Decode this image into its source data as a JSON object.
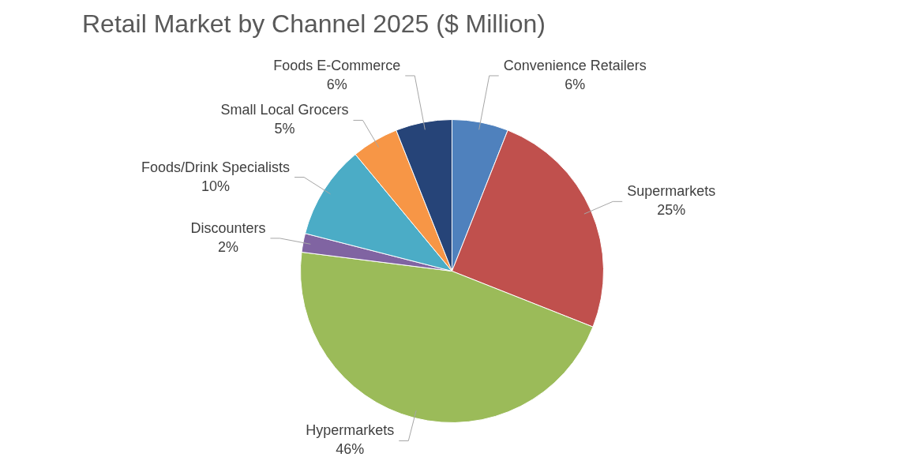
{
  "chart_data": {
    "type": "pie",
    "title": "Retail Market by Channel 2025 ($ Million)",
    "categories": [
      "Convenience Retailers",
      "Supermarkets",
      "Hypermarkets",
      "Discounters",
      "Foods/Drink Specialists",
      "Small Local Grocers",
      "Foods E-Commerce"
    ],
    "values": [
      6,
      25,
      46,
      2,
      10,
      5,
      6
    ],
    "value_labels": [
      "6%",
      "25%",
      "46%",
      "2%",
      "10%",
      "5%",
      "6%"
    ],
    "colors": [
      "#4f81bd",
      "#c0504d",
      "#9bbb59",
      "#8064a2",
      "#4bacc6",
      "#f79646",
      "#264478"
    ],
    "legend": false
  }
}
